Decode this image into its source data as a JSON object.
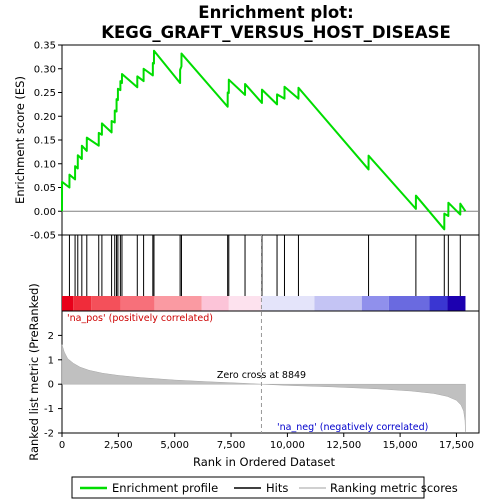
{
  "chart_data": {
    "type": "line",
    "title_line1": "Enrichment plot:",
    "title_line2": "KEGG_GRAFT_VERSUS_HOST_DISEASE",
    "top_ylabel": "Enrichment score (ES)",
    "bottom_ylabel": "Ranked list metric (PreRanked)",
    "xlabel": "Rank in Ordered Dataset",
    "xlim": [
      0,
      18500
    ],
    "es_ylim": [
      -0.05,
      0.35
    ],
    "metric_ylim": [
      -2,
      3
    ],
    "x_ticks": [
      0,
      2500,
      5000,
      7500,
      10000,
      12500,
      15000,
      17500
    ],
    "es_ticks": [
      -0.05,
      0.0,
      0.05,
      0.1,
      0.15,
      0.2,
      0.25,
      0.3,
      0.35
    ],
    "metric_ticks": [
      -2,
      -1,
      0,
      1,
      2
    ],
    "n_genes": 17900,
    "zero_cross": 8849,
    "zero_cross_label": "Zero cross at 8849",
    "pos_label": "'na_pos' (positively correlated)",
    "neg_label": "'na_neg' (negatively correlated)",
    "colors": {
      "es_line": "#00dd00",
      "pos_label": "#cc0000",
      "neg_label": "#0000cc",
      "metric_fill": "#c0c0c0"
    },
    "hits": [
      0,
      330,
      580,
      700,
      880,
      1100,
      1630,
      1770,
      2200,
      2340,
      2420,
      2480,
      2590,
      2660,
      3340,
      3620,
      4030,
      4080,
      5240,
      5300,
      7350,
      7400,
      8120,
      8870,
      9540,
      9870,
      10490,
      13600,
      15700,
      16960,
      17140,
      17670
    ],
    "es_points": [
      [
        0,
        0.0
      ],
      [
        1,
        0.062
      ],
      [
        330,
        0.05
      ],
      [
        331,
        0.077
      ],
      [
        580,
        0.067
      ],
      [
        581,
        0.095
      ],
      [
        700,
        0.09
      ],
      [
        701,
        0.118
      ],
      [
        880,
        0.11
      ],
      [
        881,
        0.138
      ],
      [
        1100,
        0.127
      ],
      [
        1101,
        0.155
      ],
      [
        1630,
        0.138
      ],
      [
        1631,
        0.165
      ],
      [
        1770,
        0.161
      ],
      [
        1771,
        0.185
      ],
      [
        2200,
        0.166
      ],
      [
        2201,
        0.19
      ],
      [
        2340,
        0.187
      ],
      [
        2341,
        0.212
      ],
      [
        2420,
        0.21
      ],
      [
        2421,
        0.236
      ],
      [
        2480,
        0.234
      ],
      [
        2481,
        0.258
      ],
      [
        2590,
        0.255
      ],
      [
        2591,
        0.274
      ],
      [
        2660,
        0.27
      ],
      [
        2661,
        0.289
      ],
      [
        3340,
        0.261
      ],
      [
        3341,
        0.284
      ],
      [
        3620,
        0.274
      ],
      [
        3621,
        0.3
      ],
      [
        4030,
        0.286
      ],
      [
        4031,
        0.312
      ],
      [
        4080,
        0.311
      ],
      [
        4081,
        0.338
      ],
      [
        5240,
        0.27
      ],
      [
        5241,
        0.298
      ],
      [
        5300,
        0.305
      ],
      [
        5301,
        0.332
      ],
      [
        7350,
        0.22
      ],
      [
        7351,
        0.25
      ],
      [
        7400,
        0.249
      ],
      [
        7401,
        0.277
      ],
      [
        8120,
        0.245
      ],
      [
        8121,
        0.268
      ],
      [
        8870,
        0.228
      ],
      [
        8871,
        0.256
      ],
      [
        9540,
        0.225
      ],
      [
        9541,
        0.246
      ],
      [
        9870,
        0.237
      ],
      [
        9871,
        0.262
      ],
      [
        10490,
        0.237
      ],
      [
        10491,
        0.26
      ],
      [
        13600,
        0.088
      ],
      [
        13601,
        0.117
      ],
      [
        15700,
        0.005
      ],
      [
        15701,
        0.033
      ],
      [
        16960,
        -0.038
      ],
      [
        16961,
        -0.005
      ],
      [
        17140,
        -0.01
      ],
      [
        17141,
        0.018
      ],
      [
        17670,
        -0.007
      ],
      [
        17671,
        0.016
      ],
      [
        17900,
        0.0
      ]
    ],
    "metric_profile": [
      [
        0,
        1.62
      ],
      [
        100,
        1.32
      ],
      [
        250,
        1.05
      ],
      [
        500,
        0.86
      ],
      [
        800,
        0.7
      ],
      [
        1200,
        0.57
      ],
      [
        1800,
        0.45
      ],
      [
        2500,
        0.36
      ],
      [
        3500,
        0.27
      ],
      [
        5000,
        0.17
      ],
      [
        6500,
        0.1
      ],
      [
        8000,
        0.04
      ],
      [
        8849,
        0.0
      ],
      [
        10000,
        -0.05
      ],
      [
        12000,
        -0.11
      ],
      [
        14000,
        -0.19
      ],
      [
        15500,
        -0.28
      ],
      [
        16500,
        -0.38
      ],
      [
        17100,
        -0.5
      ],
      [
        17500,
        -0.66
      ],
      [
        17700,
        -0.85
      ],
      [
        17820,
        -1.1
      ],
      [
        17880,
        -1.5
      ],
      [
        17900,
        -1.95
      ]
    ],
    "heat_segments": [
      {
        "from": 0,
        "to": 500,
        "color": "#e8001a"
      },
      {
        "from": 500,
        "to": 1300,
        "color": "#f02c3a"
      },
      {
        "from": 1300,
        "to": 2600,
        "color": "#f4505a"
      },
      {
        "from": 2600,
        "to": 4100,
        "color": "#f7707a"
      },
      {
        "from": 4100,
        "to": 6200,
        "color": "#fa9aa2"
      },
      {
        "from": 6200,
        "to": 7400,
        "color": "#fcc4d8"
      },
      {
        "from": 7400,
        "to": 8849,
        "color": "#fde2ee"
      },
      {
        "from": 8849,
        "to": 11200,
        "color": "#e4e4fa"
      },
      {
        "from": 11200,
        "to": 13300,
        "color": "#c4c4f4"
      },
      {
        "from": 13300,
        "to": 14500,
        "color": "#9090ec"
      },
      {
        "from": 14500,
        "to": 16300,
        "color": "#6a6ae0"
      },
      {
        "from": 16300,
        "to": 17100,
        "color": "#3a36d2"
      },
      {
        "from": 17100,
        "to": 17900,
        "color": "#1c00b0"
      }
    ],
    "legend": {
      "items": [
        {
          "label": "Enrichment profile",
          "color": "#00dd00"
        },
        {
          "label": "Hits",
          "color": "#000000"
        },
        {
          "label": "Ranking metric scores",
          "color": "#c0c0c0"
        }
      ]
    }
  }
}
